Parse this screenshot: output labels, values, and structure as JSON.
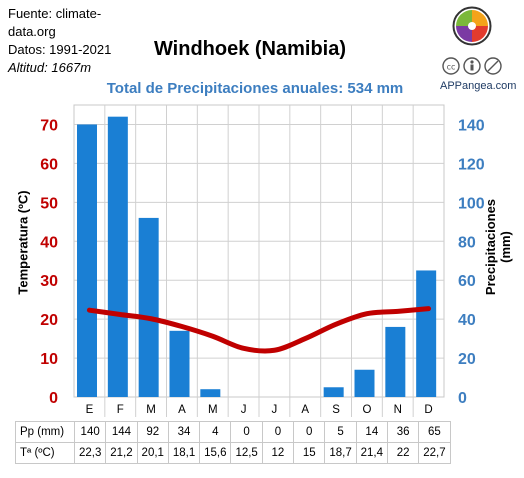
{
  "source": {
    "line1": "Fuente: climate-",
    "line2": "data.org",
    "period": "Datos: 1991-2021",
    "altitude": "Altitud: 1667m"
  },
  "brand": "APPangea.com",
  "chart_data": {
    "type": "bar",
    "title": "Windhoek (Namibia)",
    "subtitle": "Total de Precipitaciones anuales: 534 mm",
    "categories": [
      "E",
      "F",
      "M",
      "A",
      "M",
      "J",
      "J",
      "A",
      "S",
      "O",
      "N",
      "D"
    ],
    "series": [
      {
        "name": "Pp (mm)",
        "type": "bar",
        "axis": "right",
        "color": "#1a7fd4",
        "values": [
          140,
          144,
          92,
          34,
          4,
          0,
          0,
          0,
          5,
          14,
          36,
          65
        ]
      },
      {
        "name": "Tª (ºC)",
        "type": "line",
        "axis": "left",
        "color": "#c00000",
        "values": [
          22.3,
          21.2,
          20.1,
          18.1,
          15.6,
          12.5,
          12,
          15,
          18.7,
          21.4,
          22,
          22.7
        ]
      }
    ],
    "left_axis": {
      "label": "Temperatura (ºC)",
      "range": [
        0,
        75
      ],
      "ticks": [
        0,
        10,
        20,
        30,
        40,
        50,
        60,
        70
      ],
      "color": "#c00000"
    },
    "right_axis": {
      "label": "Precipitaciones (mm)",
      "range": [
        0,
        150
      ],
      "ticks": [
        0,
        20,
        40,
        60,
        80,
        100,
        120,
        140
      ],
      "color": "#3d7ec0"
    },
    "grid": true,
    "table": {
      "rows": [
        {
          "label": "Pp (mm)",
          "values": [
            "140",
            "144",
            "92",
            "34",
            "4",
            "0",
            "0",
            "0",
            "5",
            "14",
            "36",
            "65"
          ]
        },
        {
          "label": "Tª (ºC)",
          "values": [
            "22,3",
            "21,2",
            "20,1",
            "18,1",
            "15,6",
            "12,5",
            "12",
            "15",
            "18,7",
            "21,4",
            "22",
            "22,7"
          ]
        }
      ]
    }
  }
}
